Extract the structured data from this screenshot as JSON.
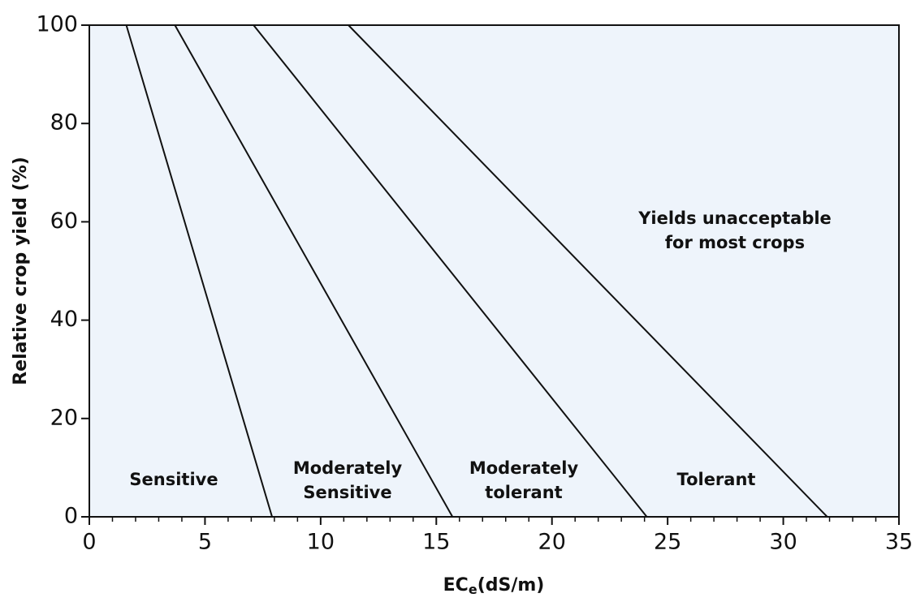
{
  "chart_data": {
    "type": "line",
    "xlabel": [
      "EC",
      "e",
      "(dS/m)"
    ],
    "ylabel": "Relative crop yield (%)",
    "xlim": [
      0,
      35
    ],
    "xticks": [
      0,
      5,
      10,
      15,
      20,
      25,
      30,
      35
    ],
    "xminorticks": [
      1,
      2,
      3,
      4,
      6,
      7,
      8,
      9,
      11,
      12,
      13,
      14,
      16,
      17,
      18,
      19,
      21,
      22,
      23,
      24,
      26,
      27,
      28,
      29,
      31,
      32,
      33,
      34
    ],
    "ylim": [
      0,
      100
    ],
    "yticks": [
      0,
      20,
      40,
      60,
      80,
      100
    ],
    "background": "#eef4fb",
    "series": [
      {
        "color": "#111111",
        "x": [
          1.6,
          7.9
        ],
        "values": [
          100,
          0
        ]
      },
      {
        "color": "#111111",
        "x": [
          3.7,
          15.7
        ],
        "values": [
          100,
          0
        ]
      },
      {
        "color": "#111111",
        "x": [
          7.1,
          24.1
        ],
        "values": [
          100,
          0
        ]
      },
      {
        "color": "#111111",
        "x": [
          11.2,
          31.9
        ],
        "values": [
          100,
          0
        ]
      }
    ],
    "annotations": [
      [
        "Sensitive"
      ],
      [
        "Moderately",
        "Sensitive"
      ],
      [
        "Moderately",
        "tolerant"
      ],
      [
        "Tolerant"
      ],
      [
        "Yields unacceptable",
        "for most crops"
      ]
    ]
  }
}
